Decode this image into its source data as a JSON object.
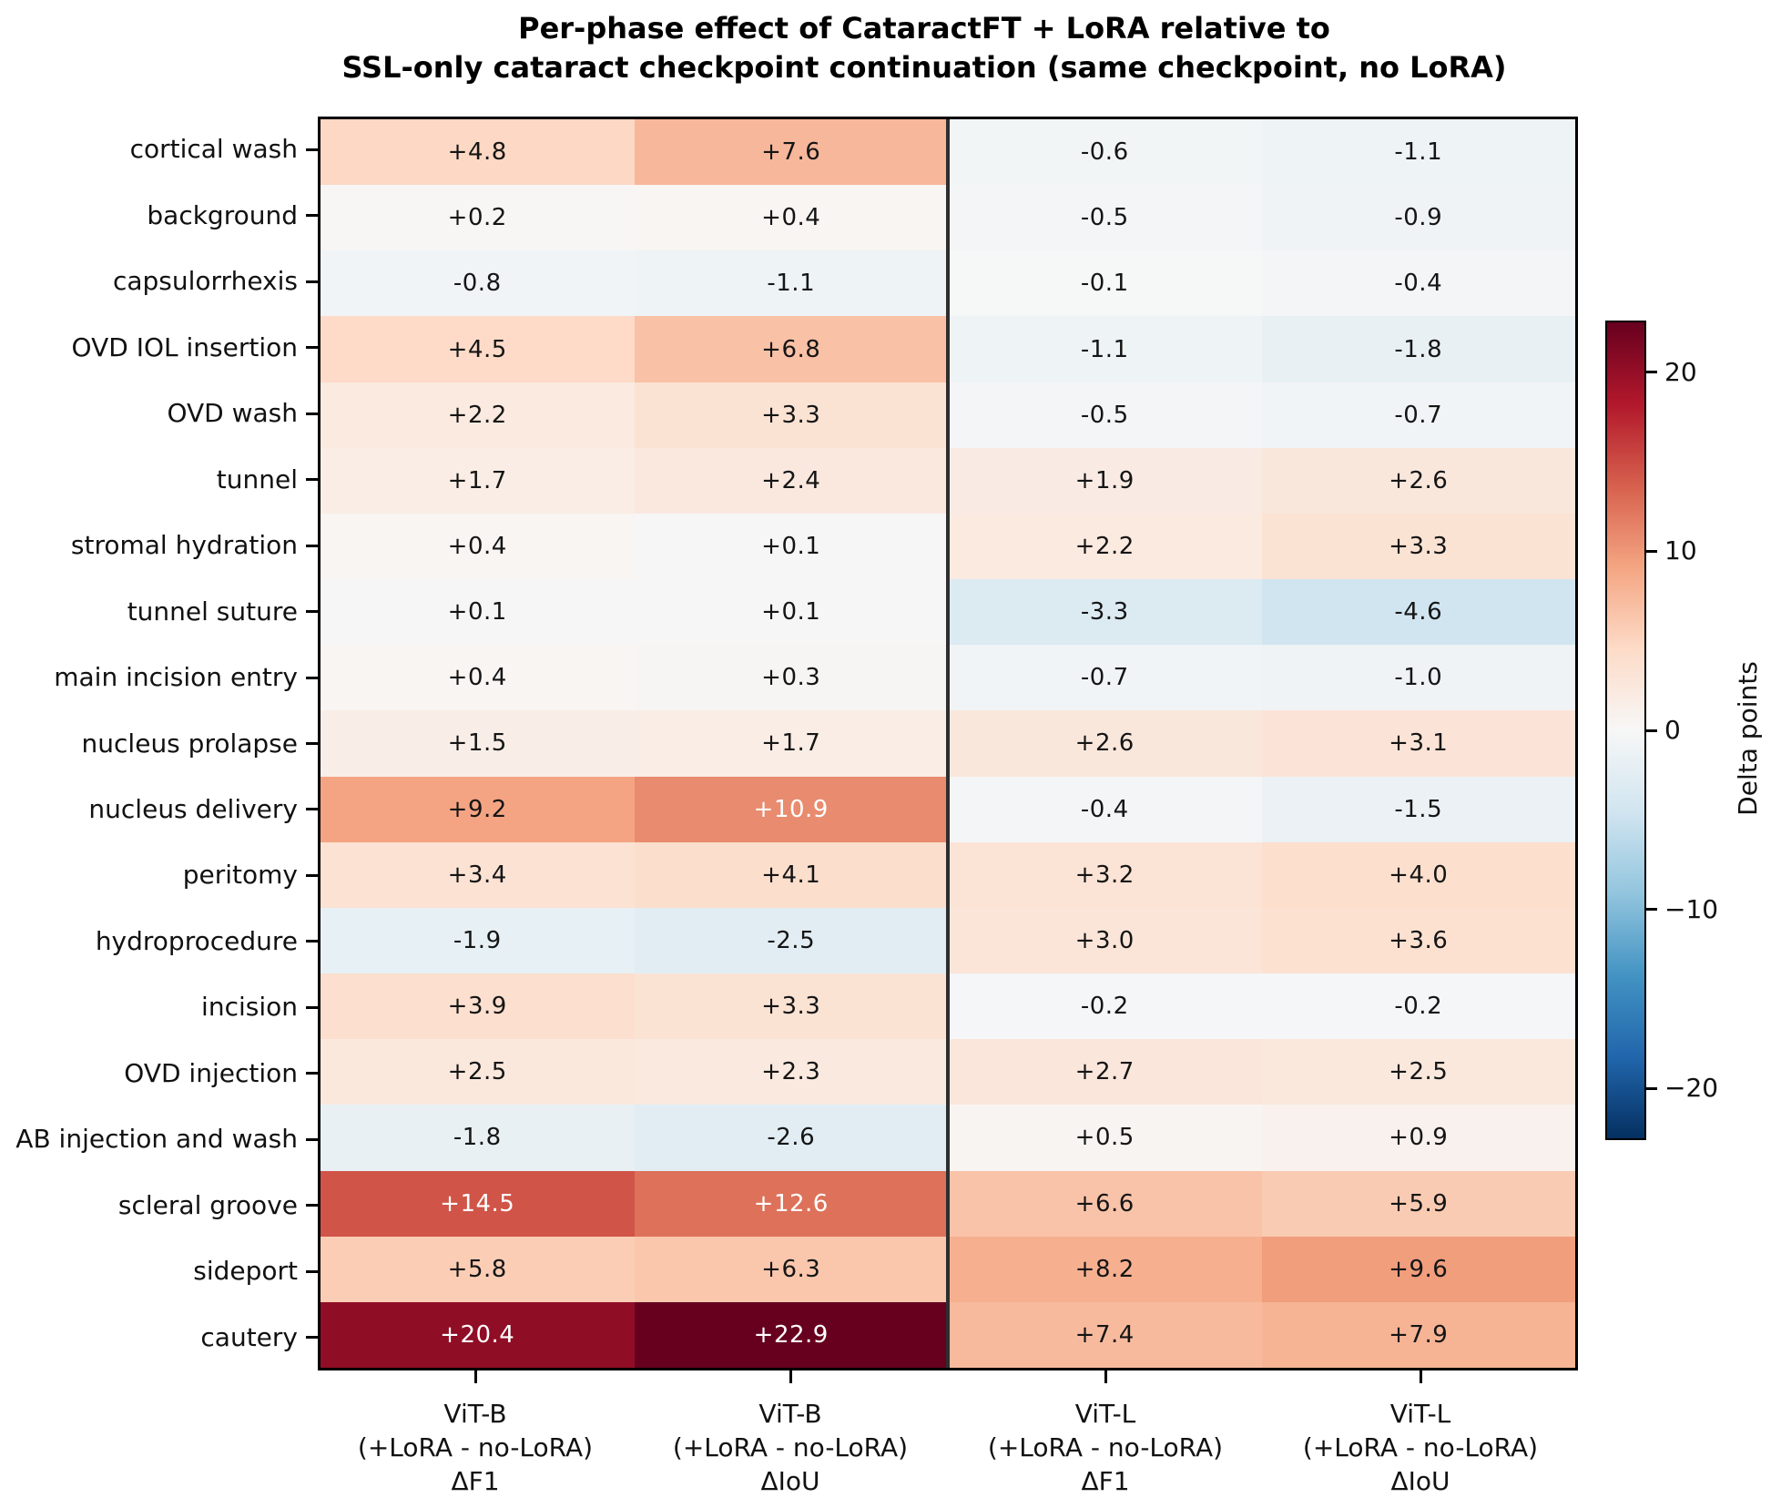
{
  "figure": {
    "title_line1": "Per-phase effect of CataractFT + LoRA relative to",
    "title_line2": "SSL-only cataract checkpoint continuation (same checkpoint, no LoRA)"
  },
  "chart_data": {
    "type": "heatmap",
    "title": "Per-phase effect of CataractFT + LoRA relative to SSL-only cataract checkpoint continuation (same checkpoint, no LoRA)",
    "rows": [
      "cortical wash",
      "background",
      "capsulorrhexis",
      "OVD IOL insertion",
      "OVD wash",
      "tunnel",
      "stromal hydration",
      "tunnel suture",
      "main incision entry",
      "nucleus prolapse",
      "nucleus delivery",
      "peritomy",
      "hydroprocedure",
      "incision",
      "OVD injection",
      "AB injection and wash",
      "scleral groove",
      "sideport",
      "cautery"
    ],
    "columns": [
      [
        "ViT-B",
        "(+LoRA - no-LoRA)",
        "ΔF1"
      ],
      [
        "ViT-B",
        "(+LoRA - no-LoRA)",
        "ΔIoU"
      ],
      [
        "ViT-L",
        "(+LoRA - no-LoRA)",
        "ΔF1"
      ],
      [
        "ViT-L",
        "(+LoRA - no-LoRA)",
        "ΔIoU"
      ]
    ],
    "values": [
      [
        4.8,
        7.6,
        -0.6,
        -1.1
      ],
      [
        0.2,
        0.4,
        -0.5,
        -0.9
      ],
      [
        -0.8,
        -1.1,
        -0.1,
        -0.4
      ],
      [
        4.5,
        6.8,
        -1.1,
        -1.8
      ],
      [
        2.2,
        3.3,
        -0.5,
        -0.7
      ],
      [
        1.7,
        2.4,
        1.9,
        2.6
      ],
      [
        0.4,
        0.1,
        2.2,
        3.3
      ],
      [
        0.1,
        0.1,
        -3.3,
        -4.6
      ],
      [
        0.4,
        0.3,
        -0.7,
        -1.0
      ],
      [
        1.5,
        1.7,
        2.6,
        3.1
      ],
      [
        9.2,
        10.9,
        -0.4,
        -1.5
      ],
      [
        3.4,
        4.1,
        3.2,
        4.0
      ],
      [
        -1.9,
        -2.5,
        3.0,
        3.6
      ],
      [
        3.9,
        3.3,
        -0.2,
        -0.2
      ],
      [
        2.5,
        2.3,
        2.7,
        2.5
      ],
      [
        -1.8,
        -2.6,
        0.5,
        0.9
      ],
      [
        14.5,
        12.6,
        6.6,
        5.9
      ],
      [
        5.8,
        6.3,
        8.2,
        9.6
      ],
      [
        20.4,
        22.9,
        7.4,
        7.9
      ]
    ],
    "value_format": "signed one decimal, e.g. +4.8 / -0.6",
    "group_divider_after_column": 2,
    "grid": false,
    "colormap": {
      "name": "RdBu_r",
      "vmin": -22.9,
      "vmax": 22.9,
      "stops_bottom_to_top": [
        "#053061",
        "#2166ac",
        "#4393c3",
        "#92c5de",
        "#d1e5f0",
        "#f7f7f7",
        "#fddbc7",
        "#f4a582",
        "#d6604d",
        "#b2182b",
        "#67001f"
      ]
    },
    "annotations": {
      "dark_text_color": "#151515",
      "light_text_color": "#ffffff",
      "white_text_abs_threshold": 10.3
    },
    "colorbar": {
      "label": "Delta points",
      "position": "right",
      "ticks": [
        {
          "value": 20,
          "label": "20"
        },
        {
          "value": 10,
          "label": "10"
        },
        {
          "value": 0,
          "label": "0"
        },
        {
          "value": -10,
          "label": "−10"
        },
        {
          "value": -20,
          "label": "−20"
        }
      ]
    }
  }
}
